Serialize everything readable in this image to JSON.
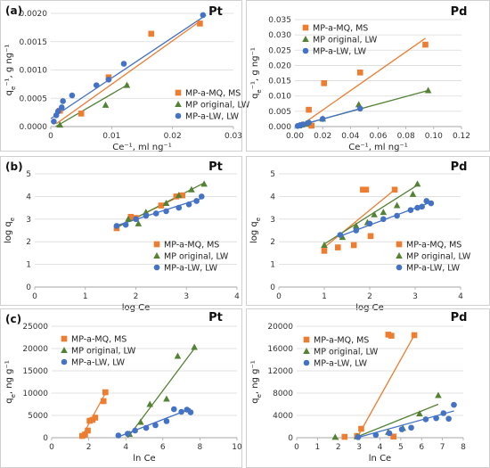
{
  "panel_labels": [
    "(a)",
    "(b)",
    "(c)"
  ],
  "legend": [
    "MP-a-MQ, MS",
    "MP original, LW",
    "MP-a-LW, LW"
  ],
  "colors": {
    "s0": "#ED7D31",
    "s1": "#548235",
    "s2": "#4472C4",
    "grid": "#d9d9d9",
    "axis": "#a6a6a6"
  },
  "chart_data": [
    {
      "type": "scatter",
      "metal": "Pt",
      "row": 0,
      "col": 0,
      "xlabel": "Ce⁻¹, ml ng⁻¹",
      "ylabel": "qe⁻¹, g ng⁻¹",
      "xlim": [
        0,
        0.03
      ],
      "ylim": [
        0,
        0.002
      ],
      "xticks": [
        "0",
        "0.01",
        "0.02",
        "0.03"
      ],
      "yticks": [
        "0.0000",
        "0.0005",
        "0.0010",
        "0.0015",
        "0.0020"
      ],
      "series": [
        {
          "name": "MP-a-MQ, MS",
          "marker": "square",
          "points": [
            [
              0.0015,
              0.00028
            ],
            [
              0.005,
              0.00023
            ],
            [
              0.0095,
              0.00087
            ],
            [
              0.0165,
              0.00164
            ],
            [
              0.0245,
              0.00182
            ]
          ],
          "fit": [
            [
              0.0009,
              5e-05
            ],
            [
              0.0245,
              0.00186
            ]
          ]
        },
        {
          "name": "MP original, LW",
          "marker": "triangle",
          "points": [
            [
              0.0015,
              3e-05
            ],
            [
              0.009,
              0.00038
            ],
            [
              0.0125,
              0.00073
            ]
          ],
          "fit": [
            [
              0.0008,
              0.0
            ],
            [
              0.0128,
              0.00075
            ]
          ]
        },
        {
          "name": "MP-a-LW, LW",
          "marker": "circle",
          "points": [
            [
              0.0005,
              9e-05
            ],
            [
              0.0009,
              0.0002
            ],
            [
              0.0012,
              0.00027
            ],
            [
              0.0018,
              0.00034
            ],
            [
              0.002,
              0.00045
            ],
            [
              0.0035,
              0.00055
            ],
            [
              0.0075,
              0.00073
            ],
            [
              0.0095,
              0.00083
            ],
            [
              0.012,
              0.00111
            ],
            [
              0.025,
              0.00197
            ]
          ],
          "fit": [
            [
              0.0,
              0.00014
            ],
            [
              0.0255,
              0.00197
            ]
          ]
        }
      ]
    },
    {
      "type": "scatter",
      "metal": "Pd",
      "row": 0,
      "col": 1,
      "xlabel": "Ce⁻¹, ml ng⁻¹",
      "ylabel": "qe⁻¹, g ng⁻¹",
      "xlim": [
        0,
        0.12
      ],
      "ylim": [
        0,
        0.035
      ],
      "xticks": [
        "0.00",
        "0.02",
        "0.04",
        "0.06",
        "0.08",
        "0.10",
        "0.12"
      ],
      "yticks": [
        "0.000",
        "0.005",
        "0.010",
        "0.015",
        "0.020",
        "0.025",
        "0.030",
        "0.035"
      ],
      "series": [
        {
          "name": "MP-a-MQ, MS",
          "marker": "square",
          "points": [
            [
              0.01,
              0.0055
            ],
            [
              0.012,
              0.0003
            ],
            [
              0.021,
              0.0142
            ],
            [
              0.047,
              0.0177
            ],
            [
              0.094,
              0.0268
            ]
          ],
          "fit": [
            [
              0.003,
              0.0
            ],
            [
              0.094,
              0.0289
            ]
          ]
        },
        {
          "name": "MP original, LW",
          "marker": "triangle",
          "points": [
            [
              0.003,
              0.0003
            ],
            [
              0.005,
              0.0006
            ],
            [
              0.008,
              0.0009
            ],
            [
              0.02,
              0.0025
            ],
            [
              0.046,
              0.0072
            ],
            [
              0.096,
              0.0118
            ]
          ],
          "fit": [
            [
              0.0,
              0.0
            ],
            [
              0.096,
              0.0118
            ]
          ]
        },
        {
          "name": "MP-a-LW, LW",
          "marker": "circle",
          "points": [
            [
              0.002,
              0.0002
            ],
            [
              0.004,
              0.0005
            ],
            [
              0.006,
              0.0007
            ],
            [
              0.01,
              0.0013
            ],
            [
              0.02,
              0.0025
            ],
            [
              0.047,
              0.0059
            ]
          ],
          "fit": [
            [
              0.001,
              0.0001
            ],
            [
              0.048,
              0.006
            ]
          ]
        }
      ]
    },
    {
      "type": "scatter",
      "metal": "Pt",
      "row": 1,
      "col": 0,
      "xlabel": "log Ce",
      "ylabel": "log qe",
      "xlim": [
        0,
        4
      ],
      "ylim": [
        0,
        5
      ],
      "xticks": [
        "0",
        "1",
        "2",
        "3",
        "4"
      ],
      "yticks": [
        "0",
        "1",
        "2",
        "3",
        "4",
        "5"
      ],
      "series": [
        {
          "name": "MP-a-MQ, MS",
          "marker": "square",
          "points": [
            [
              1.62,
              2.6
            ],
            [
              1.9,
              3.1
            ],
            [
              2.0,
              3.05
            ],
            [
              2.5,
              3.6
            ],
            [
              2.8,
              4.0
            ],
            [
              2.92,
              4.05
            ]
          ],
          "fit": [
            [
              1.6,
              2.62
            ],
            [
              2.95,
              4.1
            ]
          ]
        },
        {
          "name": "MP original, LW",
          "marker": "triangle",
          "points": [
            [
              1.85,
              3.0
            ],
            [
              2.05,
              2.8
            ],
            [
              2.2,
              3.3
            ],
            [
              2.6,
              3.7
            ],
            [
              2.85,
              4.05
            ],
            [
              3.1,
              4.3
            ],
            [
              3.35,
              4.55
            ]
          ],
          "fit": [
            [
              1.6,
              2.6
            ],
            [
              3.35,
              4.6
            ]
          ]
        },
        {
          "name": "MP-a-LW, LW",
          "marker": "circle",
          "points": [
            [
              1.62,
              2.7
            ],
            [
              1.8,
              2.75
            ],
            [
              2.0,
              3.0
            ],
            [
              2.2,
              3.15
            ],
            [
              2.4,
              3.25
            ],
            [
              2.6,
              3.35
            ],
            [
              2.85,
              3.5
            ],
            [
              3.05,
              3.65
            ],
            [
              3.2,
              3.8
            ],
            [
              3.3,
              4.0
            ]
          ],
          "fit": [
            [
              1.6,
              2.7
            ],
            [
              3.35,
              3.95
            ]
          ]
        }
      ]
    },
    {
      "type": "scatter",
      "metal": "Pd",
      "row": 1,
      "col": 1,
      "xlabel": "log Ce",
      "ylabel": "log qe",
      "xlim": [
        0,
        4
      ],
      "ylim": [
        0,
        5
      ],
      "xticks": [
        "0",
        "1",
        "2",
        "3",
        "4"
      ],
      "yticks": [
        "0",
        "1",
        "2",
        "3",
        "4",
        "5"
      ],
      "series": [
        {
          "name": "MP-a-MQ, MS",
          "marker": "square",
          "points": [
            [
              1.0,
              1.6
            ],
            [
              1.3,
              1.75
            ],
            [
              1.65,
              1.85
            ],
            [
              1.85,
              4.3
            ],
            [
              1.92,
              4.3
            ],
            [
              2.02,
              2.25
            ],
            [
              2.55,
              4.3
            ]
          ],
          "fit": [
            [
              1.0,
              1.75
            ],
            [
              2.55,
              4.3
            ]
          ]
        },
        {
          "name": "MP original, LW",
          "marker": "triangle",
          "points": [
            [
              1.0,
              1.85
            ],
            [
              1.4,
              2.2
            ],
            [
              1.7,
              2.7
            ],
            [
              1.95,
              2.85
            ],
            [
              2.1,
              3.2
            ],
            [
              2.3,
              3.3
            ],
            [
              2.6,
              3.6
            ],
            [
              2.95,
              4.1
            ],
            [
              3.05,
              4.55
            ]
          ],
          "fit": [
            [
              1.0,
              1.9
            ],
            [
              3.05,
              4.5
            ]
          ]
        },
        {
          "name": "MP-a-LW, LW",
          "marker": "circle",
          "points": [
            [
              1.35,
              2.3
            ],
            [
              1.7,
              2.5
            ],
            [
              2.0,
              2.8
            ],
            [
              2.3,
              3.0
            ],
            [
              2.6,
              3.15
            ],
            [
              2.9,
              3.4
            ],
            [
              3.05,
              3.5
            ],
            [
              3.15,
              3.55
            ],
            [
              3.25,
              3.8
            ],
            [
              3.35,
              3.7
            ]
          ],
          "fit": [
            [
              1.35,
              2.25
            ],
            [
              3.35,
              3.75
            ]
          ]
        }
      ]
    },
    {
      "type": "scatter",
      "metal": "Pt",
      "row": 2,
      "col": 0,
      "xlabel": "ln Ce",
      "ylabel": "qe, ng g⁻¹",
      "xlim": [
        0,
        10
      ],
      "ylim": [
        0,
        25000
      ],
      "xticks": [
        "0",
        "2",
        "4",
        "6",
        "8",
        "10"
      ],
      "yticks": [
        "0",
        "5000",
        "10000",
        "15000",
        "20000",
        "25000"
      ],
      "series": [
        {
          "name": "MP-a-MQ, MS",
          "marker": "square",
          "points": [
            [
              1.65,
              400
            ],
            [
              1.8,
              700
            ],
            [
              1.95,
              1600
            ],
            [
              2.05,
              3800
            ],
            [
              2.2,
              4000
            ],
            [
              2.35,
              4500
            ],
            [
              2.8,
              8200
            ],
            [
              2.9,
              10200
            ]
          ],
          "fit": [
            [
              1.6,
              0
            ],
            [
              2.9,
              10000
            ]
          ]
        },
        {
          "name": "MP original, LW",
          "marker": "triangle",
          "points": [
            [
              4.2,
              800
            ],
            [
              4.8,
              3500
            ],
            [
              5.3,
              7500
            ],
            [
              6.2,
              8700
            ],
            [
              6.8,
              18300
            ],
            [
              7.7,
              20300
            ]
          ],
          "fit": [
            [
              4.1,
              0
            ],
            [
              7.7,
              20000
            ]
          ]
        },
        {
          "name": "MP-a-LW, LW",
          "marker": "circle",
          "points": [
            [
              3.6,
              500
            ],
            [
              4.1,
              900
            ],
            [
              4.5,
              1600
            ],
            [
              5.1,
              2200
            ],
            [
              5.6,
              2800
            ],
            [
              6.2,
              3700
            ],
            [
              6.6,
              6400
            ],
            [
              7.0,
              5800
            ],
            [
              7.3,
              6300
            ],
            [
              7.5,
              5700
            ]
          ],
          "fit": [
            [
              3.6,
              200
            ],
            [
              7.5,
              6500
            ]
          ]
        }
      ]
    },
    {
      "type": "scatter",
      "metal": "Pd",
      "row": 2,
      "col": 1,
      "xlabel": "ln Ce",
      "ylabel": "qe, ng g⁻¹",
      "xlim": [
        0,
        8
      ],
      "ylim": [
        0,
        20000
      ],
      "xticks": [
        "0",
        "1",
        "2",
        "3",
        "4",
        "5",
        "6",
        "7",
        "8"
      ],
      "yticks": [
        "0",
        "4000",
        "8000",
        "12000",
        "16000",
        "20000"
      ],
      "series": [
        {
          "name": "MP-a-MQ, MS",
          "marker": "square",
          "points": [
            [
              2.3,
              150
            ],
            [
              2.9,
              300
            ],
            [
              3.1,
              1600
            ],
            [
              4.4,
              18500
            ],
            [
              4.55,
              18300
            ],
            [
              4.65,
              200
            ],
            [
              5.65,
              18400
            ]
          ],
          "fit": [
            [
              2.9,
              0
            ],
            [
              5.65,
              18400
            ]
          ]
        },
        {
          "name": "MP original, LW",
          "marker": "triangle",
          "points": [
            [
              1.85,
              100
            ],
            [
              2.9,
              200
            ],
            [
              4.4,
              1000
            ],
            [
              5.1,
              1700
            ],
            [
              5.9,
              4300
            ],
            [
              6.8,
              7600
            ]
          ],
          "fit": [
            [
              2.8,
              0
            ],
            [
              6.8,
              6000
            ]
          ]
        },
        {
          "name": "MP-a-LW, LW",
          "marker": "circle",
          "points": [
            [
              2.95,
              100
            ],
            [
              3.8,
              500
            ],
            [
              4.45,
              800
            ],
            [
              5.05,
              1500
            ],
            [
              5.5,
              1800
            ],
            [
              6.2,
              3300
            ],
            [
              6.7,
              3500
            ],
            [
              7.05,
              4400
            ],
            [
              7.3,
              3400
            ],
            [
              7.55,
              5900
            ]
          ],
          "fit": [
            [
              2.9,
              0
            ],
            [
              7.55,
              4800
            ]
          ]
        }
      ]
    }
  ]
}
